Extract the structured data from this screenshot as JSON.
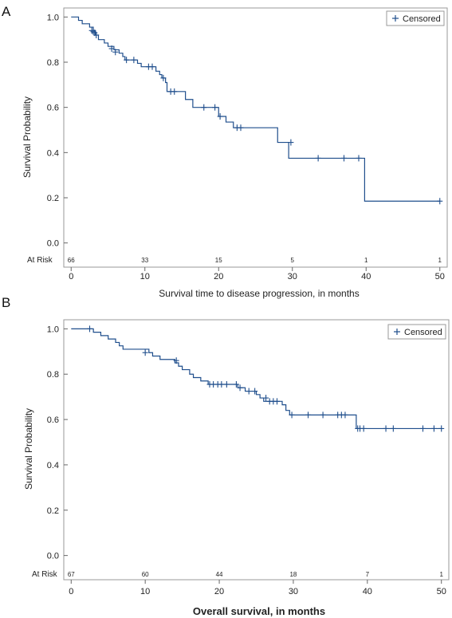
{
  "panels": [
    {
      "letter": "A"
    },
    {
      "letter": "B"
    }
  ],
  "chart_data": [
    {
      "type": "line",
      "panel": "A",
      "title": "",
      "xlabel": "Survival time to disease progression, in months",
      "ylabel": "Survival Probability",
      "xlim": [
        -1,
        51
      ],
      "ylim": [
        -0.04,
        1.04
      ],
      "xticks": [
        0,
        10,
        20,
        30,
        40,
        50
      ],
      "xtick_labels": [
        "0",
        "10",
        "20",
        "30",
        "40",
        "50"
      ],
      "yticks": [
        0.0,
        0.2,
        0.4,
        0.6,
        0.8,
        1.0
      ],
      "ytick_labels": [
        "0.0",
        "0.2",
        "0.4",
        "0.6",
        "0.8",
        "1.0"
      ],
      "legend": {
        "label": "Censored",
        "position": "top-right"
      },
      "risk_label": "At Risk",
      "risk_times": [
        0,
        10,
        20,
        30,
        40,
        50
      ],
      "risk_counts": [
        "66",
        "33",
        "15",
        "5",
        "1",
        "1"
      ],
      "series": [
        {
          "step_points": [
            [
              0,
              1.0
            ],
            [
              1,
              1.0
            ],
            [
              1.0,
              0.985
            ],
            [
              1.5,
              0.985
            ],
            [
              1.5,
              0.97
            ],
            [
              2.5,
              0.97
            ],
            [
              2.5,
              0.955
            ],
            [
              3.0,
              0.955
            ],
            [
              3.0,
              0.94
            ],
            [
              3.3,
              0.94
            ],
            [
              3.3,
              0.92
            ],
            [
              3.7,
              0.92
            ],
            [
              3.7,
              0.9
            ],
            [
              4.5,
              0.9
            ],
            [
              4.5,
              0.885
            ],
            [
              5.0,
              0.885
            ],
            [
              5.0,
              0.87
            ],
            [
              5.8,
              0.87
            ],
            [
              5.8,
              0.855
            ],
            [
              6.5,
              0.855
            ],
            [
              6.5,
              0.84
            ],
            [
              7.0,
              0.84
            ],
            [
              7.0,
              0.825
            ],
            [
              7.3,
              0.825
            ],
            [
              7.3,
              0.81
            ],
            [
              9.0,
              0.81
            ],
            [
              9.0,
              0.795
            ],
            [
              9.5,
              0.795
            ],
            [
              9.5,
              0.78
            ],
            [
              11.5,
              0.78
            ],
            [
              11.5,
              0.76
            ],
            [
              12.0,
              0.76
            ],
            [
              12.0,
              0.745
            ],
            [
              12.3,
              0.745
            ],
            [
              12.3,
              0.73
            ],
            [
              12.8,
              0.73
            ],
            [
              12.8,
              0.71
            ],
            [
              13.0,
              0.71
            ],
            [
              13.0,
              0.67
            ],
            [
              15.5,
              0.67
            ],
            [
              15.5,
              0.635
            ],
            [
              16.5,
              0.635
            ],
            [
              16.5,
              0.6
            ],
            [
              20.0,
              0.6
            ],
            [
              20.0,
              0.56
            ],
            [
              21.0,
              0.56
            ],
            [
              21.0,
              0.535
            ],
            [
              22.0,
              0.535
            ],
            [
              22.0,
              0.51
            ],
            [
              23.5,
              0.51
            ],
            [
              28.0,
              0.51
            ],
            [
              28.0,
              0.445
            ],
            [
              29.5,
              0.445
            ],
            [
              29.5,
              0.375
            ],
            [
              39.8,
              0.375
            ],
            [
              39.8,
              0.185
            ],
            [
              50.0,
              0.185
            ]
          ],
          "censored": [
            [
              2.8,
              0.94
            ],
            [
              3.0,
              0.935
            ],
            [
              3.2,
              0.93
            ],
            [
              3.4,
              0.92
            ],
            [
              5.5,
              0.86
            ],
            [
              6.0,
              0.845
            ],
            [
              7.5,
              0.81
            ],
            [
              8.5,
              0.81
            ],
            [
              10.5,
              0.78
            ],
            [
              11.0,
              0.78
            ],
            [
              12.5,
              0.73
            ],
            [
              13.5,
              0.67
            ],
            [
              14.0,
              0.67
            ],
            [
              18.0,
              0.6
            ],
            [
              19.5,
              0.6
            ],
            [
              20.2,
              0.56
            ],
            [
              22.5,
              0.51
            ],
            [
              23.0,
              0.51
            ],
            [
              29.8,
              0.445
            ],
            [
              33.5,
              0.375
            ],
            [
              37.0,
              0.375
            ],
            [
              39.0,
              0.375
            ],
            [
              50.0,
              0.185
            ]
          ]
        }
      ]
    },
    {
      "type": "line",
      "panel": "B",
      "title": "",
      "xlabel": "Overall survival, in months",
      "ylabel": "Survival Probability",
      "xlim": [
        -1,
        51
      ],
      "ylim": [
        -0.04,
        1.04
      ],
      "xticks": [
        0,
        10,
        20,
        30,
        40,
        50
      ],
      "xtick_labels": [
        "0",
        "10",
        "20",
        "30",
        "40",
        "50"
      ],
      "yticks": [
        0.0,
        0.2,
        0.4,
        0.6,
        0.8,
        1.0
      ],
      "ytick_labels": [
        "0.0",
        "0.2",
        "0.4",
        "0.6",
        "0.8",
        "1.0"
      ],
      "legend": {
        "label": "Censored",
        "position": "top-right"
      },
      "risk_label": "At Risk",
      "risk_times": [
        0,
        10,
        20,
        30,
        40,
        50
      ],
      "risk_counts": [
        "67",
        "60",
        "44",
        "18",
        "7",
        "1"
      ],
      "series": [
        {
          "step_points": [
            [
              0,
              1.0
            ],
            [
              3.0,
              1.0
            ],
            [
              3.0,
              0.985
            ],
            [
              4.0,
              0.985
            ],
            [
              4.0,
              0.97
            ],
            [
              5.0,
              0.97
            ],
            [
              5.0,
              0.955
            ],
            [
              6.0,
              0.955
            ],
            [
              6.0,
              0.94
            ],
            [
              6.5,
              0.94
            ],
            [
              6.5,
              0.925
            ],
            [
              7.0,
              0.925
            ],
            [
              7.0,
              0.91
            ],
            [
              10.5,
              0.91
            ],
            [
              10.5,
              0.895
            ],
            [
              11.0,
              0.895
            ],
            [
              11.0,
              0.88
            ],
            [
              12.0,
              0.88
            ],
            [
              12.0,
              0.865
            ],
            [
              14.0,
              0.865
            ],
            [
              14.0,
              0.85
            ],
            [
              14.5,
              0.85
            ],
            [
              14.5,
              0.835
            ],
            [
              15.0,
              0.835
            ],
            [
              15.0,
              0.82
            ],
            [
              16.0,
              0.82
            ],
            [
              16.0,
              0.8
            ],
            [
              16.5,
              0.8
            ],
            [
              16.5,
              0.785
            ],
            [
              17.5,
              0.785
            ],
            [
              17.5,
              0.77
            ],
            [
              18.5,
              0.77
            ],
            [
              18.5,
              0.755
            ],
            [
              22.5,
              0.755
            ],
            [
              22.5,
              0.74
            ],
            [
              23.5,
              0.74
            ],
            [
              23.5,
              0.725
            ],
            [
              25.0,
              0.725
            ],
            [
              25.0,
              0.71
            ],
            [
              25.5,
              0.71
            ],
            [
              25.5,
              0.695
            ],
            [
              26.0,
              0.695
            ],
            [
              26.0,
              0.68
            ],
            [
              28.5,
              0.68
            ],
            [
              28.5,
              0.665
            ],
            [
              29.0,
              0.665
            ],
            [
              29.0,
              0.64
            ],
            [
              29.5,
              0.64
            ],
            [
              29.5,
              0.62
            ],
            [
              38.5,
              0.62
            ],
            [
              38.5,
              0.56
            ],
            [
              50.0,
              0.56
            ]
          ],
          "censored": [
            [
              2.5,
              1.0
            ],
            [
              10.0,
              0.895
            ],
            [
              14.2,
              0.86
            ],
            [
              18.7,
              0.755
            ],
            [
              19.2,
              0.755
            ],
            [
              19.8,
              0.755
            ],
            [
              20.3,
              0.755
            ],
            [
              21.0,
              0.755
            ],
            [
              22.3,
              0.755
            ],
            [
              22.8,
              0.74
            ],
            [
              24.0,
              0.725
            ],
            [
              24.8,
              0.725
            ],
            [
              26.3,
              0.695
            ],
            [
              26.8,
              0.68
            ],
            [
              27.3,
              0.68
            ],
            [
              27.8,
              0.68
            ],
            [
              29.8,
              0.62
            ],
            [
              32.0,
              0.62
            ],
            [
              34.0,
              0.62
            ],
            [
              36.0,
              0.62
            ],
            [
              36.5,
              0.62
            ],
            [
              37.0,
              0.62
            ],
            [
              38.7,
              0.56
            ],
            [
              39.0,
              0.56
            ],
            [
              39.5,
              0.56
            ],
            [
              42.5,
              0.56
            ],
            [
              43.5,
              0.56
            ],
            [
              47.5,
              0.56
            ],
            [
              49.0,
              0.56
            ],
            [
              50.0,
              0.56
            ]
          ]
        }
      ]
    }
  ]
}
